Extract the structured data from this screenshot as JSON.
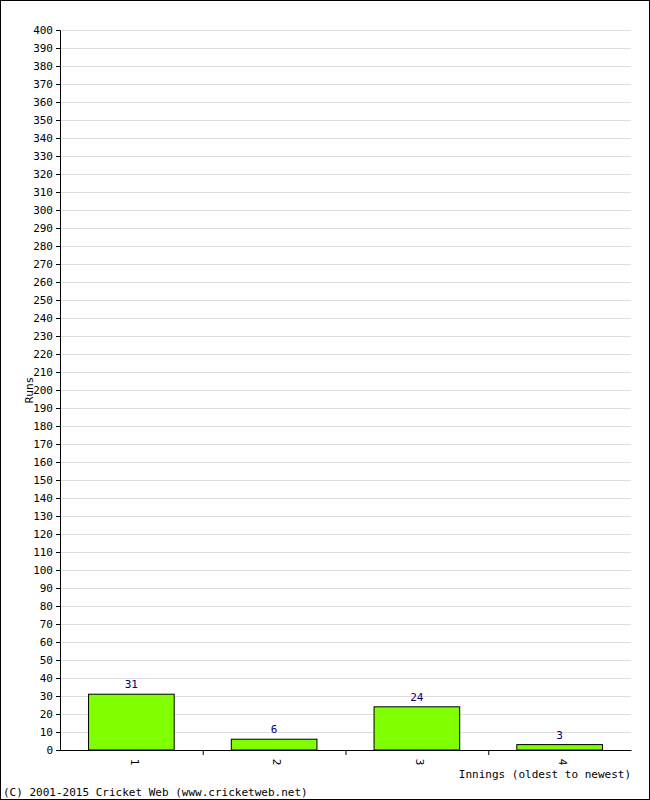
{
  "chart_data": {
    "type": "bar",
    "categories": [
      "1",
      "2",
      "3",
      "4"
    ],
    "values": [
      31,
      6,
      24,
      3
    ],
    "color": "#80ff00",
    "ylim": [
      0,
      400
    ],
    "yticks": [
      0,
      10,
      20,
      30,
      40,
      50,
      60,
      70,
      80,
      90,
      100,
      110,
      120,
      130,
      140,
      150,
      160,
      170,
      180,
      190,
      200,
      210,
      220,
      230,
      240,
      250,
      260,
      270,
      280,
      290,
      300,
      310,
      320,
      330,
      340,
      350,
      360,
      370,
      380,
      390,
      400
    ],
    "grid": true,
    "data_labels": true,
    "y_label": "Runs",
    "x_label": "Innings (oldest to newest)",
    "annotations": [
      "(C) 2001-2015 Cricket Web (www.cricketweb.net)"
    ]
  }
}
